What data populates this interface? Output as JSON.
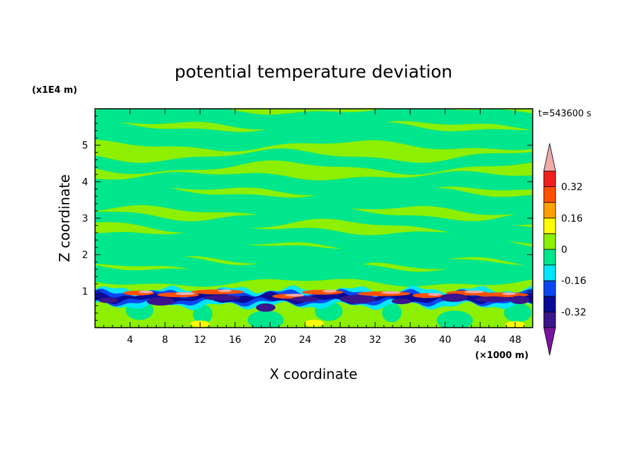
{
  "chart_data": {
    "type": "heatmap",
    "title": "potential temperature deviation",
    "time_label": "t=543600 s",
    "xlabel": "X coordinate",
    "ylabel": "Z coordinate",
    "x_unit": "(×1000 m)",
    "y_unit": "(x1E4 m)",
    "xlim": [
      0,
      50
    ],
    "ylim": [
      0,
      6
    ],
    "x_ticks": [
      "4",
      "8",
      "12",
      "16",
      "20",
      "24",
      "28",
      "32",
      "36",
      "40",
      "44",
      "48"
    ],
    "x_tick_values": [
      4,
      8,
      12,
      16,
      20,
      24,
      28,
      32,
      36,
      40,
      44,
      48
    ],
    "y_ticks": [
      "1",
      "2",
      "3",
      "4",
      "5"
    ],
    "y_tick_values": [
      1,
      2,
      3,
      4,
      5
    ],
    "colorbar": {
      "labels": [
        "0.32",
        "0.16",
        "0",
        "-0.16",
        "-0.32"
      ],
      "label_values": [
        0.32,
        0.16,
        0,
        -0.16,
        -0.32
      ],
      "levels": [
        -0.4,
        -0.32,
        -0.24,
        -0.16,
        -0.08,
        0,
        0.08,
        0.16,
        0.24,
        0.32,
        0.4
      ],
      "colors": [
        "#3c148c",
        "#0a0a96",
        "#0a46f0",
        "#00e6ff",
        "#00e68c",
        "#8cf000",
        "#ffff00",
        "#ffa000",
        "#ff5000",
        "#f01e1e"
      ],
      "under_color": "#7814a0",
      "over_color": "#f0aaaa"
    },
    "field_description": "Mostly near-zero alternating green bands aloft; strong positive and negative anomalies concentrated in a thin layer near z = 0.8 (x1E4 m) across the domain."
  }
}
